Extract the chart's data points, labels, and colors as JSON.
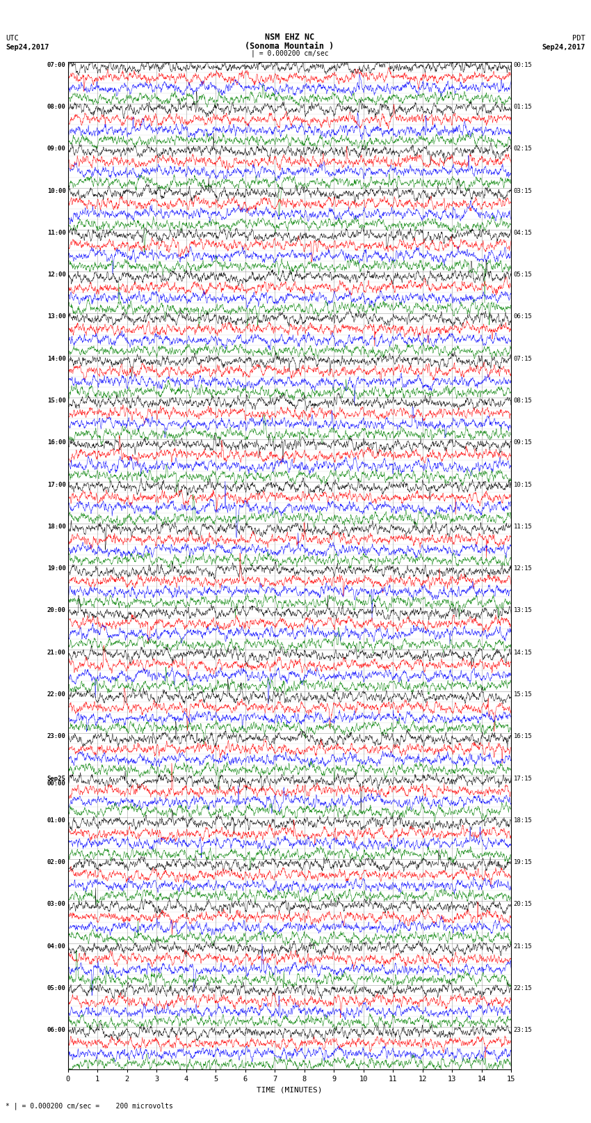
{
  "title_line1": "NSM EHZ NC",
  "title_line2": "(Sonoma Mountain )",
  "title_line3": "| = 0.000200 cm/sec",
  "left_header_line1": "UTC",
  "left_header_line2": "Sep24,2017",
  "right_header_line1": "PDT",
  "right_header_line2": "Sep24,2017",
  "xlabel": "TIME (MINUTES)",
  "footnote": "* | = 0.000200 cm/sec =    200 microvolts",
  "utc_labels": [
    "07:00",
    "08:00",
    "09:00",
    "10:00",
    "11:00",
    "12:00",
    "13:00",
    "14:00",
    "15:00",
    "16:00",
    "17:00",
    "18:00",
    "19:00",
    "20:00",
    "21:00",
    "22:00",
    "23:00",
    "Sep25\n00:00",
    "01:00",
    "02:00",
    "03:00",
    "04:00",
    "05:00",
    "06:00"
  ],
  "pdt_labels": [
    "00:15",
    "01:15",
    "02:15",
    "03:15",
    "04:15",
    "05:15",
    "06:15",
    "07:15",
    "08:15",
    "09:15",
    "10:15",
    "11:15",
    "12:15",
    "13:15",
    "14:15",
    "15:15",
    "16:15",
    "17:15",
    "18:15",
    "19:15",
    "20:15",
    "21:15",
    "22:15",
    "23:15"
  ],
  "num_hour_blocks": 24,
  "minutes_per_row": 15,
  "trace_colors": [
    "black",
    "red",
    "blue",
    "green"
  ],
  "background_color": "white",
  "grid_color": "#777777",
  "figure_width": 8.5,
  "figure_height": 16.13,
  "dpi": 100,
  "trace_amplitude": 0.28,
  "noise_scale": 0.12
}
